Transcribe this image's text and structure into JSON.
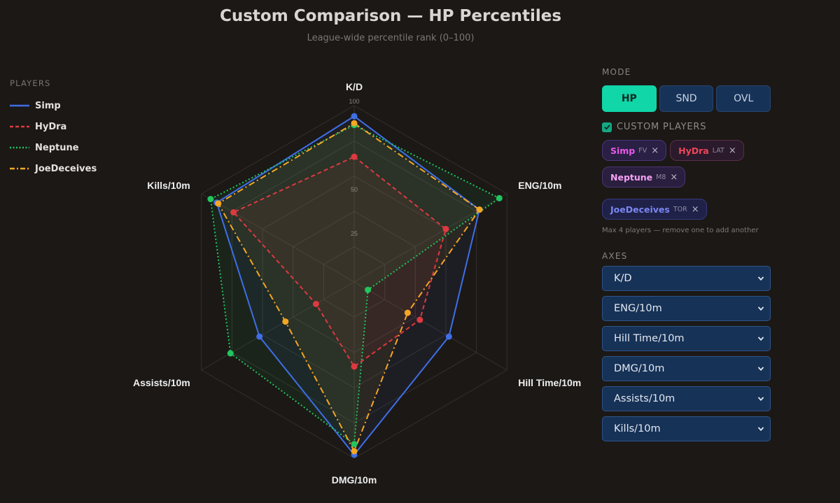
{
  "header": {
    "title": "Custom Comparison — HP Percentiles",
    "subtitle": "League-wide percentile rank (0–100)"
  },
  "legend": {
    "heading": "PLAYERS"
  },
  "chart_data": {
    "type": "radar",
    "title": "Custom Comparison — HP Percentiles",
    "subtitle": "League-wide percentile rank (0–100)",
    "axes": [
      "K/D",
      "ENG/10m",
      "Hill Time/10m",
      "DMG/10m",
      "Assists/10m",
      "Kills/10m"
    ],
    "range": [
      0,
      100
    ],
    "ticks": [
      25,
      50,
      100
    ],
    "grid": true,
    "legend_position": "left",
    "series": [
      {
        "name": "Simp",
        "color": "#3f6ee6",
        "dash": "solid",
        "values": [
          94,
          82,
          62,
          98,
          62,
          90
        ]
      },
      {
        "name": "HyDra",
        "color": "#dc3a40",
        "dash": "dashed",
        "values": [
          71,
          60,
          43,
          48,
          25,
          79
        ]
      },
      {
        "name": "Neptune",
        "color": "#22c55e",
        "dash": "dotted",
        "values": [
          89,
          95,
          9,
          92,
          81,
          94
        ]
      },
      {
        "name": "JoeDeceives",
        "color": "#f5a623",
        "dash": "dashdot",
        "values": [
          90,
          82,
          35,
          96,
          45,
          89
        ]
      }
    ]
  },
  "panel": {
    "mode_heading": "MODE",
    "modes": [
      {
        "label": "HP",
        "active": true
      },
      {
        "label": "SND",
        "active": false
      },
      {
        "label": "OVL",
        "active": false
      }
    ],
    "custom_players_label": "CUSTOM PLAYERS",
    "custom_players_checked": true,
    "chips": [
      {
        "name": "Simp",
        "team": "FV",
        "color": "#e85ae8"
      },
      {
        "name": "HyDra",
        "team": "LAT",
        "color": "#f0455a"
      },
      {
        "name": "Neptune",
        "team": "M8",
        "color": "#f4a2f4"
      },
      {
        "name": "JoeDeceives",
        "team": "TOR",
        "color": "#7b86f2"
      }
    ],
    "remove_glyph": "×",
    "note": "Max 4 players — remove one to add another",
    "axes_heading": "AXES",
    "axis_selects": [
      "K/D",
      "ENG/10m",
      "Hill Time/10m",
      "DMG/10m",
      "Assists/10m",
      "Kills/10m"
    ]
  }
}
